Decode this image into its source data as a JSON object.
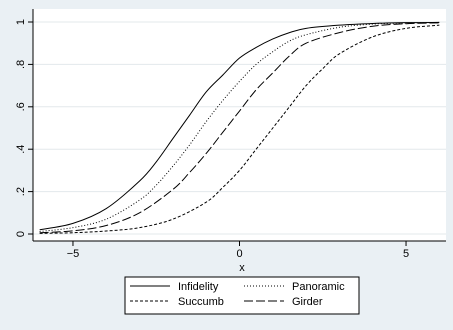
{
  "chart_data": {
    "type": "line",
    "title": "",
    "xlabel": "x",
    "ylabel": "",
    "xlim": [
      -6.2,
      6.2
    ],
    "ylim": [
      0,
      1
    ],
    "x_ticks": [
      -5,
      0,
      5
    ],
    "x_tick_labels": [
      "−5",
      "0",
      "5"
    ],
    "y_ticks": [
      0,
      0.2,
      0.4,
      0.6,
      0.8,
      1
    ],
    "y_tick_labels": [
      "0",
      ".2",
      ".4",
      ".6",
      ".8",
      "1"
    ],
    "grid": "horizontal",
    "legend_position": "bottom",
    "series": [
      {
        "name": "Infidelity",
        "style": "solid",
        "color": "#000000",
        "x": [
          -6,
          -5,
          -4,
          -3,
          -2.5,
          -2,
          -1.5,
          -1,
          -0.5,
          0,
          0.5,
          1,
          1.5,
          2,
          3,
          4,
          5,
          6
        ],
        "y": [
          0.02,
          0.05,
          0.12,
          0.25,
          0.34,
          0.45,
          0.56,
          0.67,
          0.75,
          0.83,
          0.88,
          0.92,
          0.95,
          0.97,
          0.985,
          0.993,
          0.997,
          0.998
        ]
      },
      {
        "name": "Panoramic",
        "style": "dotted",
        "color": "#000000",
        "x": [
          -6,
          -5,
          -4,
          -3,
          -2.5,
          -2,
          -1.5,
          -1,
          -0.5,
          0,
          0.5,
          1,
          1.5,
          2,
          3,
          4,
          5,
          6
        ],
        "y": [
          0.012,
          0.03,
          0.07,
          0.16,
          0.23,
          0.32,
          0.42,
          0.53,
          0.63,
          0.72,
          0.8,
          0.86,
          0.91,
          0.94,
          0.975,
          0.99,
          0.995,
          0.998
        ]
      },
      {
        "name": "Succumb",
        "style": "short-dash",
        "color": "#000000",
        "x": [
          -6,
          -5,
          -4,
          -3,
          -2,
          -1,
          -0.5,
          0,
          0.5,
          1,
          1.5,
          2,
          2.5,
          3,
          4,
          5,
          6
        ],
        "y": [
          0.003,
          0.006,
          0.014,
          0.03,
          0.07,
          0.15,
          0.22,
          0.3,
          0.4,
          0.5,
          0.6,
          0.7,
          0.78,
          0.85,
          0.93,
          0.97,
          0.985
        ]
      },
      {
        "name": "Girder",
        "style": "long-dash",
        "color": "#000000",
        "x": [
          -6,
          -5,
          -4,
          -3,
          -2,
          -1.5,
          -1,
          -0.5,
          0,
          0.5,
          1,
          1.5,
          2,
          3,
          4,
          5,
          6
        ],
        "y": [
          0.006,
          0.015,
          0.04,
          0.1,
          0.21,
          0.29,
          0.38,
          0.48,
          0.58,
          0.68,
          0.76,
          0.84,
          0.9,
          0.95,
          0.98,
          0.992,
          0.996
        ]
      }
    ]
  }
}
